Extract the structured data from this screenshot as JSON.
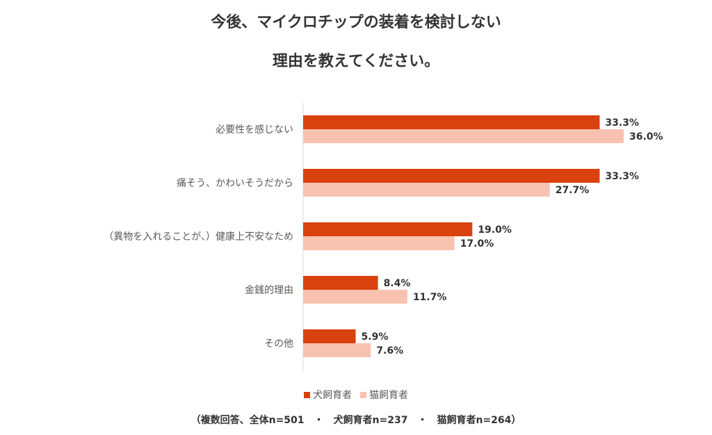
{
  "title_lines": [
    "今後、マイクロチップの装着を検討しない",
    "理由を教えてください。"
  ],
  "footnote": "（複数回答、全体n=501　・　犬飼育者n=237　・　猫飼育者n=264）",
  "colors": {
    "dog": "#D9410E",
    "cat": "#F8C2B1",
    "axis": "#D9D9D9"
  },
  "chart_data": {
    "type": "bar",
    "orientation": "horizontal",
    "categories": [
      "必要性を感じない",
      "痛そう、かわいそうだから",
      "（異物を入れることが、）健康上不安なため",
      "金銭的理由",
      "その他"
    ],
    "series": [
      {
        "name": "犬飼育者",
        "values": [
          33.3,
          33.3,
          19.0,
          8.4,
          5.9
        ],
        "labels": [
          "33.3%",
          "33.3%",
          "19.0%",
          "8.4%",
          "5.9%"
        ]
      },
      {
        "name": "猫飼育者",
        "values": [
          36.0,
          27.7,
          17.0,
          11.7,
          7.6
        ],
        "labels": [
          "36.0%",
          "27.7%",
          "17.0%",
          "11.7%",
          "7.6%"
        ]
      }
    ],
    "xlim": [
      0,
      40
    ],
    "grid": false,
    "legend_position": "bottom"
  }
}
